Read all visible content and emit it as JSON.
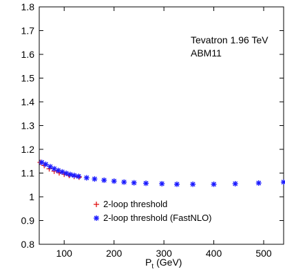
{
  "chart_data": {
    "type": "scatter",
    "title": "",
    "xlabel": "P",
    "xlabel_sub": "t",
    "xlabel_unit": "(GeV)",
    "ylabel": "",
    "xlim": [
      50,
      540
    ],
    "ylim": [
      0.8,
      1.8
    ],
    "xticks": [
      100,
      200,
      300,
      400,
      500
    ],
    "yticks": [
      0.8,
      0.9,
      1,
      1.1,
      1.2,
      1.3,
      1.4,
      1.5,
      1.6,
      1.7,
      1.8
    ],
    "xtick_labels": [
      "100",
      "200",
      "300",
      "400",
      "500"
    ],
    "ytick_labels": [
      "0.8",
      "0.9",
      "1",
      "1.1",
      "1.2",
      "1.3",
      "1.4",
      "1.5",
      "1.6",
      "1.7",
      "1.8"
    ],
    "grid": false,
    "annotations": [
      "Tevatron 1.96 TeV",
      "ABM11"
    ],
    "legend_placement": "bottom-left",
    "series": [
      {
        "name": "2-loop threshold",
        "marker": "plus",
        "color": "#e00000",
        "x": [
          52,
          60,
          70,
          80,
          90,
          100,
          110,
          120,
          130
        ],
        "y": [
          1.145,
          1.132,
          1.118,
          1.108,
          1.101,
          1.095,
          1.09,
          1.086,
          1.083
        ]
      },
      {
        "name": "2-loop threshold (FastNLO)",
        "marker": "star",
        "color": "#1a1aff",
        "x": [
          55,
          63,
          72,
          80,
          88,
          96,
          104,
          112,
          120,
          129,
          145,
          161,
          180,
          200,
          220,
          240,
          264,
          296,
          326,
          358,
          400,
          443,
          490,
          540
        ],
        "y": [
          1.145,
          1.137,
          1.127,
          1.118,
          1.111,
          1.105,
          1.099,
          1.094,
          1.09,
          1.086,
          1.08,
          1.075,
          1.07,
          1.066,
          1.062,
          1.059,
          1.057,
          1.055,
          1.053,
          1.053,
          1.053,
          1.055,
          1.058,
          1.062
        ]
      }
    ]
  }
}
